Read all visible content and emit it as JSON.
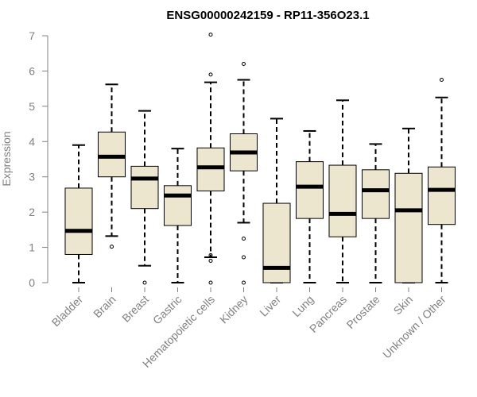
{
  "chart_data": {
    "type": "boxplot",
    "title": "ENSG00000242159 - RP11-356O23.1",
    "xlabel": "",
    "ylabel": "Expression",
    "ylim": [
      0,
      7
    ],
    "yticks": [
      0,
      1,
      2,
      3,
      4,
      5,
      6,
      7
    ],
    "categories": [
      "Bladder",
      "Brain",
      "Breast",
      "Gastric",
      "Hematopoietic cells",
      "Kidney",
      "Liver",
      "Lung",
      "Pancreas",
      "Prostate",
      "Skin",
      "Unknown / Other"
    ],
    "boxes": [
      {
        "label": "Bladder",
        "whisker_low": 0.0,
        "q1": 0.8,
        "median": 1.47,
        "q3": 2.68,
        "whisker_high": 3.9,
        "outliers": []
      },
      {
        "label": "Brain",
        "whisker_low": 1.32,
        "q1": 3.0,
        "median": 3.57,
        "q3": 4.27,
        "whisker_high": 5.62,
        "outliers": [
          1.02
        ]
      },
      {
        "label": "Breast",
        "whisker_low": 0.48,
        "q1": 2.1,
        "median": 2.95,
        "q3": 3.3,
        "whisker_high": 4.87,
        "outliers": [
          0.0
        ]
      },
      {
        "label": "Gastric",
        "whisker_low": 0.0,
        "q1": 1.62,
        "median": 2.47,
        "q3": 2.75,
        "whisker_high": 3.8,
        "outliers": []
      },
      {
        "label": "Hematopoietic cells",
        "whisker_low": 0.72,
        "q1": 2.6,
        "median": 3.27,
        "q3": 3.82,
        "whisker_high": 5.68,
        "outliers": [
          7.03,
          5.9,
          0.78,
          0.62,
          0.0
        ]
      },
      {
        "label": "Kidney",
        "whisker_low": 1.7,
        "q1": 3.17,
        "median": 3.69,
        "q3": 4.22,
        "whisker_high": 5.75,
        "outliers": [
          6.2,
          1.25,
          0.72,
          0.0
        ]
      },
      {
        "label": "Liver",
        "whisker_low": 0.0,
        "q1": 0.0,
        "median": 0.42,
        "q3": 2.25,
        "whisker_high": 4.65,
        "outliers": []
      },
      {
        "label": "Lung",
        "whisker_low": 0.0,
        "q1": 1.82,
        "median": 2.72,
        "q3": 3.43,
        "whisker_high": 4.3,
        "outliers": []
      },
      {
        "label": "Pancreas",
        "whisker_low": 0.0,
        "q1": 1.3,
        "median": 1.95,
        "q3": 3.33,
        "whisker_high": 5.17,
        "outliers": []
      },
      {
        "label": "Prostate",
        "whisker_low": 0.0,
        "q1": 1.82,
        "median": 2.62,
        "q3": 3.2,
        "whisker_high": 3.93,
        "outliers": []
      },
      {
        "label": "Skin",
        "whisker_low": 0.0,
        "q1": 0.0,
        "median": 2.05,
        "q3": 3.1,
        "whisker_high": 4.37,
        "outliers": []
      },
      {
        "label": "Unknown / Other",
        "whisker_low": 0.0,
        "q1": 1.65,
        "median": 2.63,
        "q3": 3.28,
        "whisker_high": 5.25,
        "outliers": [
          5.75
        ]
      }
    ],
    "colors": {
      "box_fill": "#ede6cf",
      "box_stroke": "#000000",
      "median": "#000000",
      "axis": "#808080",
      "tick_label": "#808080",
      "title": "#000000"
    }
  }
}
